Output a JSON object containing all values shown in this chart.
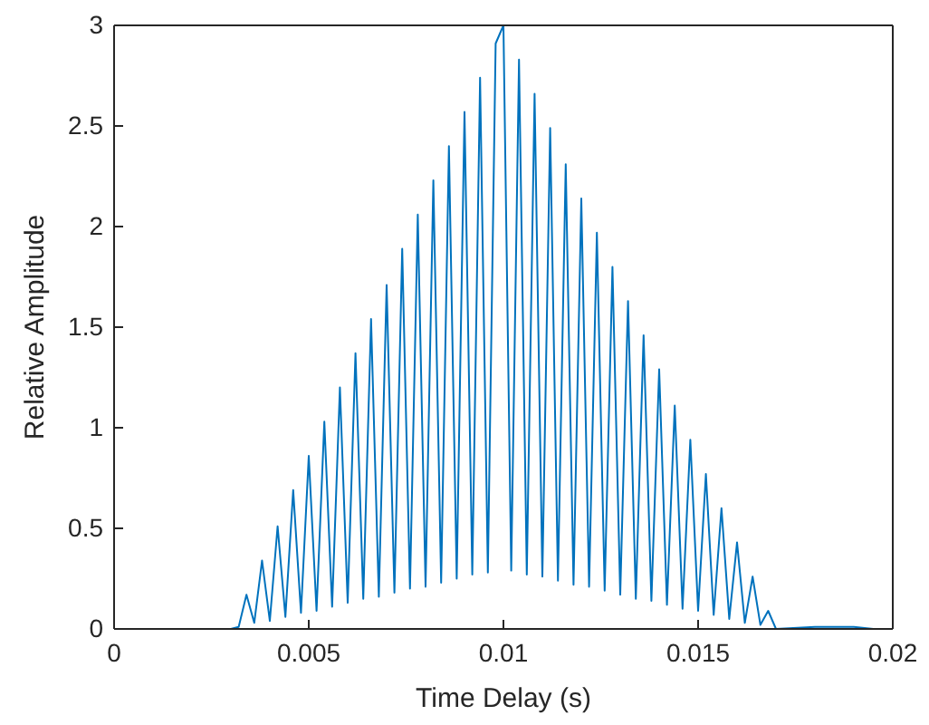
{
  "chart_data": {
    "type": "line",
    "xlabel": "Time Delay (s)",
    "ylabel": "Relative Amplitude",
    "xlim": [
      0,
      0.02
    ],
    "xticks": [
      0,
      0.005,
      0.01,
      0.015,
      0.02
    ],
    "ylim": [
      0,
      3
    ],
    "yticks": [
      0,
      0.5,
      1,
      1.5,
      2,
      2.5,
      3
    ],
    "grid": false,
    "marker": "none",
    "line_style": "solid",
    "series": [
      {
        "color": "#0072bd",
        "x": [
          0.001,
          0.002,
          0.003,
          0.0032,
          0.0034,
          0.0036,
          0.0038,
          0.004,
          0.0042,
          0.0044,
          0.0046,
          0.0048,
          0.005,
          0.0052,
          0.0054,
          0.0056,
          0.0058,
          0.006,
          0.0062,
          0.0064,
          0.0066,
          0.0068,
          0.007,
          0.0072,
          0.0074,
          0.0076,
          0.0078,
          0.008,
          0.0082,
          0.0084,
          0.0086,
          0.0088,
          0.009,
          0.0092,
          0.0094,
          0.0096,
          0.0098,
          0.01,
          0.0102,
          0.0104,
          0.0106,
          0.0108,
          0.011,
          0.0112,
          0.0114,
          0.0116,
          0.0118,
          0.012,
          0.0122,
          0.0124,
          0.0126,
          0.0128,
          0.013,
          0.0132,
          0.0134,
          0.0136,
          0.0138,
          0.014,
          0.0142,
          0.0144,
          0.0146,
          0.0148,
          0.015,
          0.0152,
          0.0154,
          0.0156,
          0.0158,
          0.016,
          0.0162,
          0.0164,
          0.0166,
          0.0168,
          0.017,
          0.018,
          0.019,
          0.0195
        ],
        "values": [
          0,
          0,
          0,
          0.01,
          0.17,
          0.03,
          0.34,
          0.04,
          0.51,
          0.06,
          0.69,
          0.08,
          0.86,
          0.09,
          1.03,
          0.11,
          1.2,
          0.13,
          1.37,
          0.15,
          1.54,
          0.16,
          1.71,
          0.18,
          1.89,
          0.2,
          2.06,
          0.21,
          2.23,
          0.23,
          2.4,
          0.25,
          2.57,
          0.27,
          2.74,
          0.28,
          2.91,
          3,
          0.29,
          2.83,
          0.27,
          2.66,
          0.26,
          2.49,
          0.24,
          2.31,
          0.22,
          2.14,
          0.21,
          1.97,
          0.19,
          1.8,
          0.17,
          1.63,
          0.15,
          1.46,
          0.14,
          1.29,
          0.12,
          1.11,
          0.1,
          0.94,
          0.09,
          0.77,
          0.07,
          0.6,
          0.05,
          0.43,
          0.03,
          0.26,
          0.02,
          0.09,
          0,
          0.01,
          0.01,
          0
        ]
      }
    ]
  }
}
